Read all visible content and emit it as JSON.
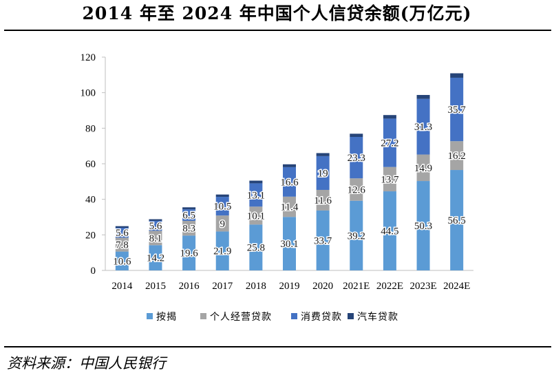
{
  "header": {
    "title": "2014 年至 2024 年中国个人信贷余额(万亿元)"
  },
  "footer": {
    "source": "资料来源：中国人民银行"
  },
  "chart_data": {
    "type": "bar",
    "stacked": true,
    "title": "2014 年至 2024 年中国个人信贷余额(万亿元)",
    "categories": [
      "2014",
      "2015",
      "2016",
      "2017",
      "2018",
      "2019",
      "2020",
      "2021E",
      "2022E",
      "2023E",
      "2024E"
    ],
    "ylim": [
      0,
      120
    ],
    "yticks": [
      "0",
      "20",
      "40",
      "60",
      "80",
      "100",
      "120"
    ],
    "grid": false,
    "legend_position": "bottom",
    "series": [
      {
        "name": "按揭",
        "color": "#5b9bd5",
        "values": [
          10.6,
          14.2,
          19.6,
          21.9,
          25.8,
          30.1,
          33.7,
          39.2,
          44.5,
          50.3,
          56.5
        ],
        "labels": [
          "10.6",
          "14.2",
          "19.6",
          "21.9",
          "25.8",
          "30.1",
          "33.7",
          "39.2",
          "44.5",
          "50.3",
          "56.5"
        ]
      },
      {
        "name": "个人经营贷款",
        "color": "#a5a5a5",
        "values": [
          7.8,
          8.1,
          8.3,
          9,
          10.1,
          11.4,
          11.6,
          12.6,
          13.7,
          14.9,
          16.2
        ],
        "labels": [
          "7.8",
          "8.1",
          "8.3",
          "9",
          "10.1",
          "11.4",
          "11.6",
          "12.6",
          "13.7",
          "14.9",
          "16.2"
        ]
      },
      {
        "name": "消费贷款",
        "color": "#4472c4",
        "values": [
          5.6,
          5.6,
          6.5,
          10.5,
          13.1,
          16.6,
          19,
          23.3,
          27.2,
          31.3,
          35.7
        ],
        "labels": [
          "5.6",
          "5.6",
          "6.5",
          "10.5",
          "13.1",
          "16.6",
          "19",
          "23.3",
          "27.2",
          "31.3",
          "35.7"
        ]
      },
      {
        "name": "汽车贷款",
        "color": "#264478",
        "values": [
          0.9,
          0.9,
          1.1,
          1.3,
          1.5,
          1.6,
          1.7,
          1.8,
          2.0,
          2.2,
          2.5
        ],
        "labels": []
      }
    ]
  }
}
